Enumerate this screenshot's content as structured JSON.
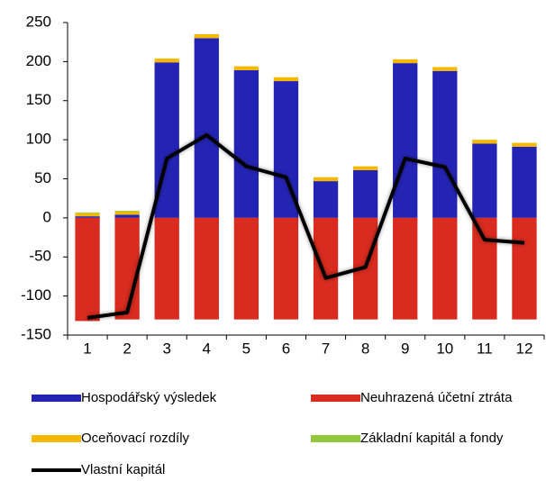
{
  "chart_data": {
    "type": "bar",
    "categories": [
      "1",
      "2",
      "3",
      "4",
      "5",
      "6",
      "7",
      "8",
      "9",
      "10",
      "11",
      "12"
    ],
    "series": [
      {
        "name": "Hospodářský výsledek",
        "color": "#2424b4",
        "values": [
          2,
          4,
          199,
          230,
          189,
          175,
          47,
          61,
          198,
          188,
          95,
          91
        ]
      },
      {
        "name": "Neuhrazená účetní ztráta",
        "color": "#d92b1f",
        "values": [
          -132,
          -130,
          -130,
          -130,
          -130,
          -130,
          -130,
          -130,
          -130,
          -130,
          -130,
          -130
        ]
      },
      {
        "name": "Oceňovací rozdíly",
        "color": "#f5b800",
        "values": [
          4,
          4,
          5,
          5,
          5,
          5,
          5,
          5,
          5,
          5,
          5,
          5
        ]
      },
      {
        "name": "Základní kapitál a fondy",
        "color": "#92c83e",
        "values": [
          1,
          1,
          0,
          0,
          0,
          0,
          0,
          0,
          0,
          0,
          0,
          0
        ]
      },
      {
        "name": "Vlastní kapitál",
        "type": "line",
        "color": "#000000",
        "values": [
          -128,
          -121,
          76,
          106,
          66,
          52,
          -77,
          -63,
          76,
          65,
          -28,
          -32
        ]
      }
    ],
    "ylim": [
      -150,
      250
    ],
    "yticks": [
      -150,
      -100,
      -50,
      0,
      50,
      100,
      150,
      200,
      250
    ]
  }
}
